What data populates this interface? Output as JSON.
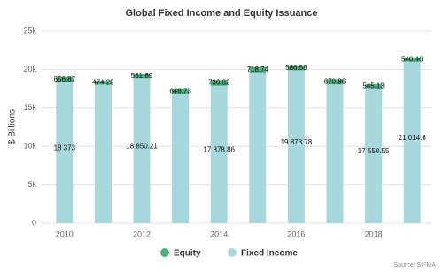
{
  "chart_data": {
    "type": "stacked-bar",
    "title": "Global Fixed Income and Equity Issuance",
    "y_label": "$ Billions",
    "source": "Source: SIFMA",
    "categories": [
      "2010",
      null,
      "2012",
      null,
      "2014",
      null,
      "2016",
      null,
      "2018",
      null
    ],
    "series": [
      {
        "name": "Equity",
        "color": "#4cb07a",
        "values": [
          656.87,
          474.29,
          531.89,
          648.73,
          730.82,
          718.74,
          586.58,
          670.86,
          545.13,
          540.46
        ]
      },
      {
        "name": "Fixed Income",
        "color": "#a7d8dd",
        "values": [
          18373,
          18050,
          18850.21,
          16820,
          17878.86,
          19600,
          19878.78,
          18060,
          17550.55,
          21014.6
        ],
        "value_labels": [
          "18 373",
          null,
          "18 850.21",
          null,
          "17 878.86",
          null,
          "19 878.78",
          null,
          "17 550.55",
          "21 014.6"
        ]
      }
    ],
    "ylim": [
      0,
      25000
    ],
    "yticks": [
      0,
      {
        "value": 5000,
        "label": "5k"
      },
      {
        "value": 10000,
        "label": "10k"
      },
      {
        "value": 15000,
        "label": "15k"
      },
      {
        "value": 20000,
        "label": "20k"
      },
      {
        "value": 25000,
        "label": "25k"
      }
    ],
    "grid": true,
    "legend": "bottom"
  }
}
